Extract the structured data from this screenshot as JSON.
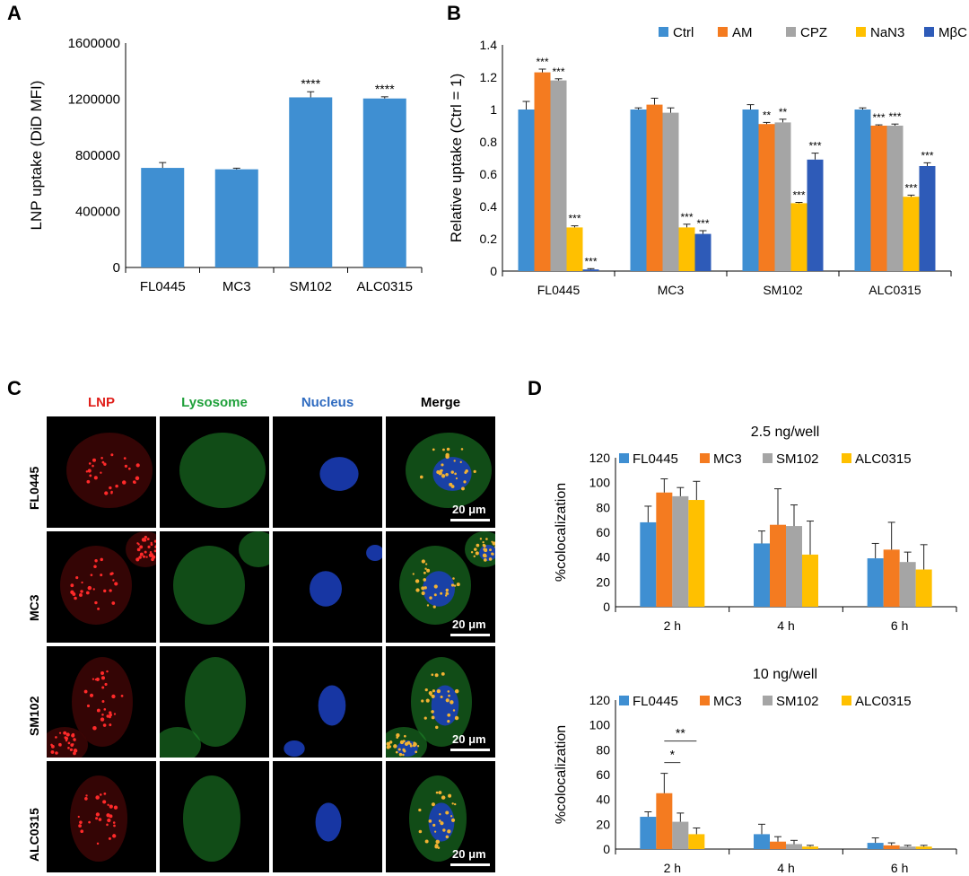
{
  "panels": {
    "A": {
      "letter": "A",
      "chart_data": {
        "type": "bar",
        "categories": [
          "FL0445",
          "MC3",
          "SM102",
          "ALC0315"
        ],
        "values": [
          710000,
          700000,
          1213000,
          1205000
        ],
        "errors": [
          38000,
          8000,
          40000,
          12000
        ],
        "sig": [
          "",
          "",
          "****",
          "****"
        ],
        "ylabel": "LNP uptake (DiD MFI)",
        "ylim": [
          0,
          1600000
        ],
        "yticks": [
          0,
          400000,
          800000,
          1200000,
          1600000
        ],
        "color": "#3F8FD2"
      }
    },
    "B": {
      "letter": "B",
      "chart_data": {
        "type": "bar",
        "categories": [
          "FL0445",
          "MC3",
          "SM102",
          "ALC0315"
        ],
        "ylabel": "Relative uptake (Ctrl = 1)",
        "ylim": [
          0,
          1.4
        ],
        "yticks": [
          "0",
          "0.2",
          "0.4",
          "0.6",
          "0.8",
          "1",
          "1.2",
          "1.4"
        ],
        "legend_position": "top",
        "series": [
          {
            "name": "Ctrl",
            "color": "#3F8FD2",
            "values": [
              1.0,
              1.0,
              1.0,
              1.0
            ],
            "errors": [
              0.05,
              0.01,
              0.03,
              0.01
            ],
            "sig": [
              "",
              "",
              "",
              ""
            ]
          },
          {
            "name": "AM",
            "color": "#F47B20",
            "values": [
              1.23,
              1.03,
              0.91,
              0.9
            ],
            "errors": [
              0.02,
              0.04,
              0.01,
              0.005
            ],
            "sig": [
              "***",
              "",
              "**",
              "***"
            ]
          },
          {
            "name": "CPZ",
            "color": "#A5A5A5",
            "values": [
              1.18,
              0.98,
              0.92,
              0.9
            ],
            "errors": [
              0.01,
              0.03,
              0.02,
              0.01
            ],
            "sig": [
              "***",
              "",
              "**",
              "***"
            ]
          },
          {
            "name": "NaN3",
            "color": "#FFC000",
            "values": [
              0.27,
              0.27,
              0.42,
              0.46
            ],
            "errors": [
              0.01,
              0.02,
              0.005,
              0.01
            ],
            "sig": [
              "***",
              "***",
              "***",
              "***"
            ]
          },
          {
            "name": "MβCD",
            "color": "#2E5BB8",
            "values": [
              0.01,
              0.23,
              0.69,
              0.65
            ],
            "errors": [
              0.005,
              0.02,
              0.04,
              0.02
            ],
            "sig": [
              "***",
              "***",
              "***",
              "***"
            ]
          }
        ]
      }
    },
    "C": {
      "letter": "C",
      "columns": [
        "LNP",
        "Lysosome",
        "Nucleus",
        "Merge"
      ],
      "column_colors": [
        "#E0201B",
        "#1FA03A",
        "#2F6BC0",
        "#000000"
      ],
      "rows": [
        "FL0445",
        "MC3",
        "SM102",
        "ALC0315"
      ],
      "scale_label": "20 μm"
    },
    "D": {
      "letter": "D",
      "legend": [
        "FL0445",
        "MC3",
        "SM102",
        "ALC0315"
      ],
      "chart_data": [
        {
          "type": "bar",
          "title": "2.5 ng/well",
          "ylabel": "%colocalization",
          "categories": [
            "2 h",
            "4 h",
            "6 h"
          ],
          "ylim": [
            0,
            120
          ],
          "yticks": [
            0,
            20,
            40,
            60,
            80,
            100,
            120
          ],
          "series": [
            {
              "name": "FL0445",
              "color": "#3F8FD2",
              "values": [
                68,
                51,
                39
              ],
              "errors": [
                13,
                10,
                12
              ]
            },
            {
              "name": "MC3",
              "color": "#F47B20",
              "values": [
                92,
                66,
                46
              ],
              "errors": [
                11,
                29,
                22
              ]
            },
            {
              "name": "SM102",
              "color": "#A5A5A5",
              "values": [
                89,
                65,
                36
              ],
              "errors": [
                7,
                17,
                8
              ]
            },
            {
              "name": "ALC0315",
              "color": "#FFC000",
              "values": [
                86,
                42,
                30
              ],
              "errors": [
                15,
                27,
                20
              ]
            }
          ]
        },
        {
          "type": "bar",
          "title": "10 ng/well",
          "ylabel": "%colocalization",
          "categories": [
            "2 h",
            "4 h",
            "6 h"
          ],
          "ylim": [
            0,
            120
          ],
          "yticks": [
            0,
            20,
            40,
            60,
            80,
            100,
            120
          ],
          "series": [
            {
              "name": "FL0445",
              "color": "#3F8FD2",
              "values": [
                26,
                12,
                5
              ],
              "errors": [
                4,
                8,
                4
              ]
            },
            {
              "name": "MC3",
              "color": "#F47B20",
              "values": [
                45,
                6,
                3
              ],
              "errors": [
                16,
                4,
                2
              ]
            },
            {
              "name": "SM102",
              "color": "#A5A5A5",
              "values": [
                22,
                4,
                2
              ],
              "errors": [
                7,
                3,
                1
              ]
            },
            {
              "name": "ALC0315",
              "color": "#FFC000",
              "values": [
                12,
                2,
                2
              ],
              "errors": [
                5,
                1,
                1
              ]
            }
          ],
          "annotations": [
            {
              "text": "*",
              "between": [
                "MC3",
                "SM102"
              ],
              "category": "2 h"
            },
            {
              "text": "**",
              "between": [
                "MC3",
                "ALC0315"
              ],
              "category": "2 h"
            }
          ]
        }
      ]
    }
  }
}
